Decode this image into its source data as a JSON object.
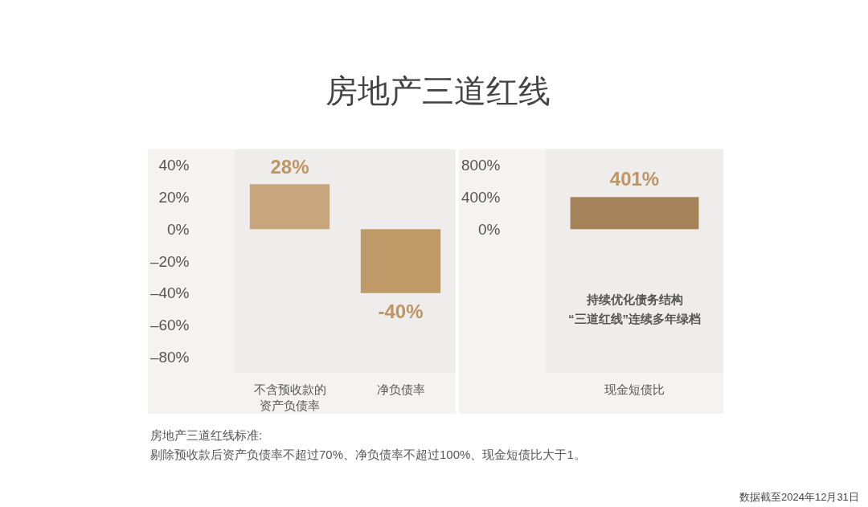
{
  "chart_data": [
    {
      "type": "bar",
      "title": "房地产三道红线",
      "categories": [
        "不含预收款的资产负债率",
        "净负债率"
      ],
      "values": [
        28,
        -40
      ],
      "colors": [
        "#c8a67c",
        "#bf9966"
      ],
      "value_labels": [
        "28%",
        "-40%"
      ],
      "ylim": [
        -90,
        50
      ],
      "yticks": [
        {
          "value": 40,
          "label": "40%"
        },
        {
          "value": 20,
          "label": "20%"
        },
        {
          "value": 0,
          "label": "0%"
        },
        {
          "value": -20,
          "label": "–20%"
        },
        {
          "value": -40,
          "label": "–40%"
        },
        {
          "value": -60,
          "label": "–60%"
        },
        {
          "value": -80,
          "label": "–80%"
        }
      ],
      "grid": false,
      "legend": false,
      "annotations": [
        "房地产三道红线标准:",
        "剔除预收款后资产负债率不超过70%、净负债率不超过100%、现金短债比大于1。",
        "数据截至2024年12月31日"
      ]
    },
    {
      "type": "bar",
      "categories": [
        "现金短债比"
      ],
      "values": [
        401
      ],
      "colors": [
        "#a68258"
      ],
      "value_labels": [
        "401%"
      ],
      "ylim": [
        -1800,
        1000
      ],
      "yticks": [
        {
          "value": 800,
          "label": "800%"
        },
        {
          "value": 400,
          "label": "400%"
        },
        {
          "value": 0,
          "label": "0%"
        }
      ],
      "grid": false,
      "legend": false,
      "annotations": [
        "持续优化债务结构",
        "“三道红线”连续多年绿档"
      ]
    }
  ]
}
